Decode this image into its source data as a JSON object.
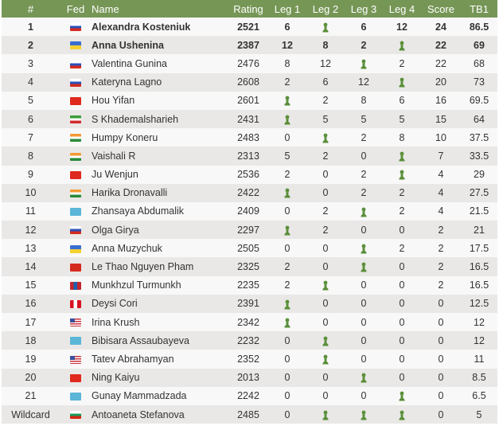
{
  "headers": [
    "#",
    "Fed",
    "Name",
    "Rating",
    "Leg 1",
    "Leg 2",
    "Leg 3",
    "Leg 4",
    "Score",
    "TB1"
  ],
  "colors": {
    "header_bg": "#769656",
    "pawn": "#5a8f3a"
  },
  "rows": [
    {
      "rank": "1",
      "fed": "ru",
      "name": "Alexandra Kosteniuk",
      "rating": "2521",
      "legs": [
        "6",
        "pawn",
        "6",
        "12"
      ],
      "score": "24",
      "tb1": "86.5",
      "bold": true
    },
    {
      "rank": "2",
      "fed": "ua",
      "name": "Anna Ushenina",
      "rating": "2387",
      "legs": [
        "12",
        "8",
        "2",
        "pawn"
      ],
      "score": "22",
      "tb1": "69",
      "bold": true
    },
    {
      "rank": "3",
      "fed": "ru",
      "name": "Valentina Gunina",
      "rating": "2476",
      "legs": [
        "8",
        "12",
        "pawn",
        "2"
      ],
      "score": "22",
      "tb1": "68"
    },
    {
      "rank": "4",
      "fed": "ru",
      "name": "Kateryna Lagno",
      "rating": "2608",
      "legs": [
        "2",
        "6",
        "12",
        "pawn"
      ],
      "score": "20",
      "tb1": "73"
    },
    {
      "rank": "5",
      "fed": "cn",
      "name": "Hou Yifan",
      "rating": "2601",
      "legs": [
        "pawn",
        "2",
        "8",
        "6"
      ],
      "score": "16",
      "tb1": "69.5"
    },
    {
      "rank": "6",
      "fed": "ir",
      "name": "S Khademalsharieh",
      "rating": "2431",
      "legs": [
        "pawn",
        "5",
        "5",
        "5"
      ],
      "score": "15",
      "tb1": "64"
    },
    {
      "rank": "7",
      "fed": "in",
      "name": "Humpy Koneru",
      "rating": "2483",
      "legs": [
        "0",
        "pawn",
        "2",
        "8"
      ],
      "score": "10",
      "tb1": "37.5"
    },
    {
      "rank": "8",
      "fed": "in",
      "name": "Vaishali R",
      "rating": "2313",
      "legs": [
        "5",
        "2",
        "0",
        "pawn"
      ],
      "score": "7",
      "tb1": "33.5"
    },
    {
      "rank": "9",
      "fed": "cn",
      "name": "Ju Wenjun",
      "rating": "2536",
      "legs": [
        "2",
        "0",
        "2",
        "pawn"
      ],
      "score": "4",
      "tb1": "29"
    },
    {
      "rank": "10",
      "fed": "in",
      "name": "Harika Dronavalli",
      "rating": "2422",
      "legs": [
        "pawn",
        "0",
        "2",
        "2"
      ],
      "score": "4",
      "tb1": "27.5"
    },
    {
      "rank": "11",
      "fed": "kz",
      "name": "Zhansaya Abdumalik",
      "rating": "2409",
      "legs": [
        "0",
        "2",
        "pawn",
        "2"
      ],
      "score": "4",
      "tb1": "21.5"
    },
    {
      "rank": "12",
      "fed": "ru",
      "name": "Olga Girya",
      "rating": "2297",
      "legs": [
        "pawn",
        "2",
        "0",
        "0"
      ],
      "score": "2",
      "tb1": "21"
    },
    {
      "rank": "13",
      "fed": "ua",
      "name": "Anna Muzychuk",
      "rating": "2505",
      "legs": [
        "0",
        "0",
        "pawn",
        "2"
      ],
      "score": "2",
      "tb1": "17.5"
    },
    {
      "rank": "14",
      "fed": "vn",
      "name": "Le Thao Nguyen Pham",
      "rating": "2325",
      "legs": [
        "2",
        "0",
        "pawn",
        "0"
      ],
      "score": "2",
      "tb1": "16.5"
    },
    {
      "rank": "15",
      "fed": "mn",
      "name": "Munkhzul Turmunkh",
      "rating": "2235",
      "legs": [
        "2",
        "pawn",
        "0",
        "0"
      ],
      "score": "2",
      "tb1": "16.5"
    },
    {
      "rank": "16",
      "fed": "pe",
      "name": "Deysi Cori",
      "rating": "2391",
      "legs": [
        "pawn",
        "0",
        "0",
        "0"
      ],
      "score": "0",
      "tb1": "12.5"
    },
    {
      "rank": "17",
      "fed": "us",
      "name": "Irina Krush",
      "rating": "2342",
      "legs": [
        "pawn",
        "0",
        "0",
        "0"
      ],
      "score": "0",
      "tb1": "12"
    },
    {
      "rank": "18",
      "fed": "kz",
      "name": "Bibisara Assaubayeva",
      "rating": "2232",
      "legs": [
        "0",
        "pawn",
        "0",
        "0"
      ],
      "score": "0",
      "tb1": "12"
    },
    {
      "rank": "19",
      "fed": "us",
      "name": "Tatev Abrahamyan",
      "rating": "2352",
      "legs": [
        "0",
        "pawn",
        "0",
        "0"
      ],
      "score": "0",
      "tb1": "11"
    },
    {
      "rank": "20",
      "fed": "cn",
      "name": "Ning Kaiyu",
      "rating": "2013",
      "legs": [
        "0",
        "0",
        "pawn",
        "0"
      ],
      "score": "0",
      "tb1": "8.5"
    },
    {
      "rank": "21",
      "fed": "kz",
      "name": "Gunay Mammadzada",
      "rating": "2242",
      "legs": [
        "0",
        "0",
        "0",
        "pawn"
      ],
      "score": "0",
      "tb1": "6.5"
    },
    {
      "rank": "Wildcard",
      "fed": "bg",
      "name": "Antoaneta Stefanova",
      "rating": "2485",
      "legs": [
        "0",
        "pawn",
        "pawn",
        "pawn"
      ],
      "score": "0",
      "tb1": "5"
    }
  ]
}
